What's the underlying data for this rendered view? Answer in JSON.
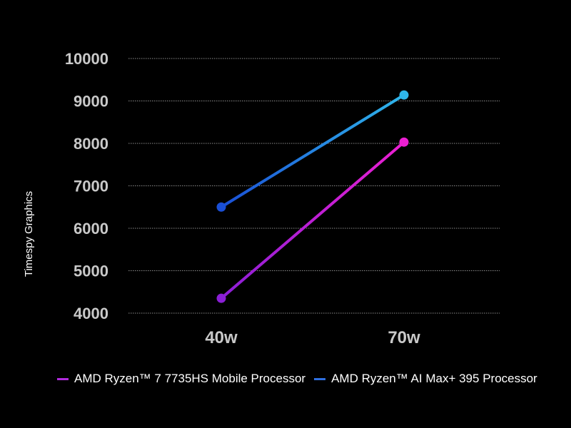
{
  "chart_data": {
    "type": "line",
    "categories": [
      "40w",
      "70w"
    ],
    "ylabel": "Timespy Graphics",
    "xlabel": "",
    "ylim": [
      4000,
      10000
    ],
    "yticks": [
      4000,
      5000,
      6000,
      7000,
      8000,
      9000,
      10000
    ],
    "grid": true,
    "legend_position": "bottom",
    "series": [
      {
        "name": "AMD Ryzen™ 7 7735HS Mobile Processor",
        "values": [
          4350,
          8030
        ],
        "color_start": "#8b1fd6",
        "color_end": "#ec1fd2",
        "legend_color": "#b02bdc"
      },
      {
        "name": "AMD Ryzen™ AI Max+ 395 Processor",
        "values": [
          6500,
          9140
        ],
        "color_start": "#1a4fd6",
        "color_end": "#2fb6ea",
        "legend_color": "#2f6fe0"
      }
    ]
  }
}
